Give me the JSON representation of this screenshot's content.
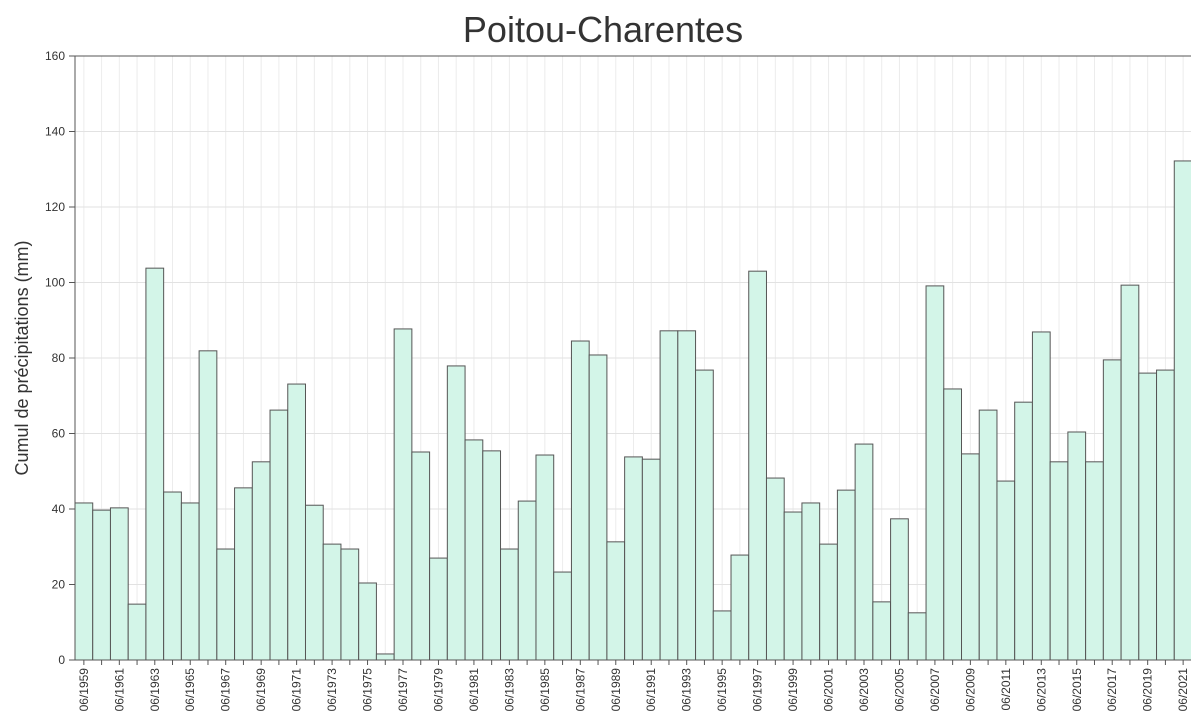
{
  "chart_data": {
    "type": "bar",
    "title": "Poitou-Charentes",
    "y_label": "Cumul de précipitations (mm)",
    "categories": [
      "06/1959",
      null,
      "06/1961",
      null,
      "06/1963",
      null,
      "06/1965",
      null,
      "06/1967",
      null,
      "06/1969",
      null,
      "06/1971",
      null,
      "06/1973",
      null,
      "06/1975",
      null,
      "06/1977",
      null,
      "06/1979",
      null,
      "06/1981",
      null,
      "06/1983",
      null,
      "06/1985",
      null,
      "06/1987",
      null,
      "06/1989",
      null,
      "06/1991",
      null,
      "06/1993",
      null,
      "06/1995",
      null,
      "06/1997",
      null,
      "06/1999",
      null,
      "06/2001",
      null,
      "06/2003",
      null,
      "06/2005",
      null,
      "06/2007",
      null,
      "06/2009",
      null,
      "06/2011",
      null,
      "06/2013",
      null,
      "06/2015",
      null,
      "06/2017",
      null,
      "06/2019",
      null,
      "06/2021"
    ],
    "values": [
      41.6,
      39.7,
      40.3,
      14.8,
      103.8,
      44.5,
      41.6,
      81.9,
      29.4,
      45.6,
      52.5,
      66.2,
      73.1,
      41,
      30.7,
      29.4,
      20.4,
      1.6,
      87.7,
      55.1,
      27,
      77.9,
      58.3,
      55.4,
      29.4,
      42.1,
      54.3,
      23.3,
      84.5,
      80.8,
      31.3,
      53.8,
      53.2,
      87.2,
      87.2,
      76.8,
      13,
      27.8,
      103,
      48.2,
      39.2,
      41.6,
      30.7,
      45,
      57.2,
      15.4,
      37.4,
      12.5,
      99.1,
      71.8,
      54.6,
      66.2,
      47.4,
      68.3,
      86.9,
      52.5,
      60.4,
      52.5,
      79.5,
      99.3,
      76,
      76.8,
      132.2
    ],
    "color": "#d3f5e8",
    "ylim": [
      0,
      160
    ],
    "yticks": [
      0,
      20,
      40,
      60,
      80,
      100,
      120,
      140,
      160
    ],
    "grid": true
  }
}
